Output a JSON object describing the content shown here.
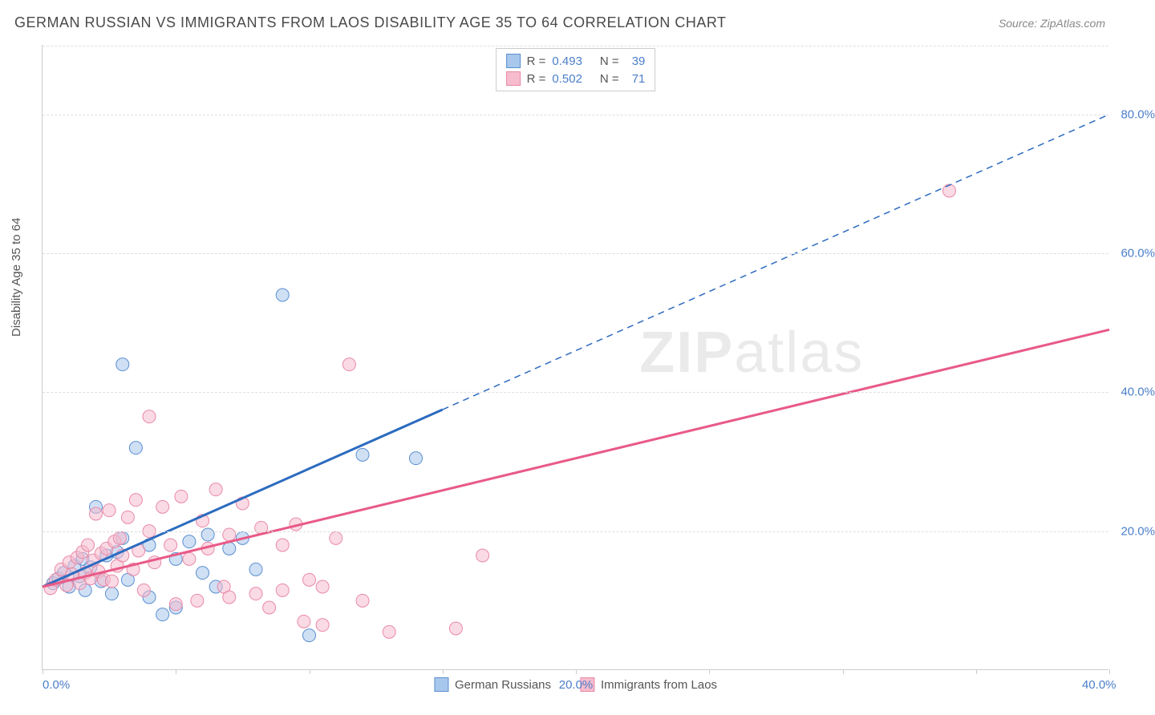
{
  "title": "GERMAN RUSSIAN VS IMMIGRANTS FROM LAOS DISABILITY AGE 35 TO 64 CORRELATION CHART",
  "source_label": "Source: ZipAtlas.com",
  "ylabel": "Disability Age 35 to 64",
  "watermark": "ZIPatlas",
  "chart": {
    "type": "scatter",
    "background_color": "#ffffff",
    "grid_color": "#dddddd",
    "axis_color": "#cccccc",
    "label_fontsize": 15,
    "tick_color": "#4a7ec9",
    "xlim": [
      0,
      40
    ],
    "ylim": [
      0,
      90
    ],
    "ytick_values": [
      20,
      40,
      60,
      80
    ],
    "ytick_labels": [
      "20.0%",
      "40.0%",
      "60.0%",
      "80.0%"
    ],
    "xtick_values": [
      0,
      20,
      40
    ],
    "xtick_labels": [
      "0.0%",
      "20.0%",
      "40.0%"
    ],
    "xtick_minor": [
      5,
      10,
      15,
      25,
      30,
      35
    ],
    "marker_radius": 8,
    "marker_opacity": 0.55,
    "series": [
      {
        "name": "German Russians",
        "fill_color": "#a8c7ec",
        "stroke_color": "#5b8fd0",
        "line_color": "#2c6bbf",
        "line_width": 3,
        "dash_after_x": 15,
        "R": "0.493",
        "N": "39",
        "trend": {
          "x1": 0,
          "y1": 12,
          "x2": 40,
          "y2": 80
        },
        "points": [
          [
            0.4,
            12.5
          ],
          [
            0.6,
            13.2
          ],
          [
            0.8,
            14.0
          ],
          [
            1.0,
            12.0
          ],
          [
            1.2,
            15.0
          ],
          [
            1.4,
            13.5
          ],
          [
            1.5,
            16.0
          ],
          [
            1.6,
            11.5
          ],
          [
            1.8,
            14.8
          ],
          [
            2.0,
            23.5
          ],
          [
            2.2,
            12.8
          ],
          [
            2.4,
            16.5
          ],
          [
            2.6,
            11.0
          ],
          [
            2.8,
            17.0
          ],
          [
            3.0,
            19.0
          ],
          [
            3.0,
            44.0
          ],
          [
            3.2,
            13.0
          ],
          [
            3.5,
            32.0
          ],
          [
            4.0,
            10.5
          ],
          [
            4.0,
            18.0
          ],
          [
            4.5,
            8.0
          ],
          [
            5.0,
            16.0
          ],
          [
            5.0,
            9.0
          ],
          [
            5.5,
            18.5
          ],
          [
            6.0,
            14.0
          ],
          [
            6.2,
            19.5
          ],
          [
            6.5,
            12.0
          ],
          [
            7.0,
            17.5
          ],
          [
            7.5,
            19.0
          ],
          [
            8.0,
            14.5
          ],
          [
            9.0,
            54.0
          ],
          [
            10.0,
            5.0
          ],
          [
            12.0,
            31.0
          ],
          [
            14.0,
            30.5
          ]
        ]
      },
      {
        "name": "Immigrants from Laos",
        "fill_color": "#f6bccd",
        "stroke_color": "#e88aa8",
        "line_color": "#e85a87",
        "line_width": 3,
        "dash_after_x": 40,
        "R": "0.502",
        "N": "71",
        "trend": {
          "x1": 0,
          "y1": 12,
          "x2": 40,
          "y2": 49
        },
        "points": [
          [
            0.3,
            11.8
          ],
          [
            0.5,
            13.0
          ],
          [
            0.7,
            14.5
          ],
          [
            0.9,
            12.2
          ],
          [
            1.0,
            15.5
          ],
          [
            1.1,
            13.8
          ],
          [
            1.3,
            16.2
          ],
          [
            1.4,
            12.5
          ],
          [
            1.5,
            17.0
          ],
          [
            1.6,
            14.0
          ],
          [
            1.7,
            18.0
          ],
          [
            1.8,
            13.2
          ],
          [
            1.9,
            15.8
          ],
          [
            2.0,
            22.5
          ],
          [
            2.1,
            14.2
          ],
          [
            2.2,
            16.8
          ],
          [
            2.3,
            13.0
          ],
          [
            2.4,
            17.5
          ],
          [
            2.5,
            23.0
          ],
          [
            2.6,
            12.8
          ],
          [
            2.7,
            18.5
          ],
          [
            2.8,
            15.0
          ],
          [
            2.9,
            19.0
          ],
          [
            3.0,
            16.5
          ],
          [
            3.2,
            22.0
          ],
          [
            3.4,
            14.5
          ],
          [
            3.5,
            24.5
          ],
          [
            3.6,
            17.2
          ],
          [
            3.8,
            11.5
          ],
          [
            4.0,
            36.5
          ],
          [
            4.0,
            20.0
          ],
          [
            4.2,
            15.5
          ],
          [
            4.5,
            23.5
          ],
          [
            4.8,
            18.0
          ],
          [
            5.0,
            9.5
          ],
          [
            5.2,
            25.0
          ],
          [
            5.5,
            16.0
          ],
          [
            5.8,
            10.0
          ],
          [
            6.0,
            21.5
          ],
          [
            6.2,
            17.5
          ],
          [
            6.5,
            26.0
          ],
          [
            6.8,
            12.0
          ],
          [
            7.0,
            19.5
          ],
          [
            7.0,
            10.5
          ],
          [
            7.5,
            24.0
          ],
          [
            8.0,
            11.0
          ],
          [
            8.2,
            20.5
          ],
          [
            8.5,
            9.0
          ],
          [
            9.0,
            18.0
          ],
          [
            9.0,
            11.5
          ],
          [
            9.5,
            21.0
          ],
          [
            9.8,
            7.0
          ],
          [
            10.0,
            13.0
          ],
          [
            10.5,
            12.0
          ],
          [
            10.5,
            6.5
          ],
          [
            11.0,
            19.0
          ],
          [
            11.5,
            44.0
          ],
          [
            12.0,
            10.0
          ],
          [
            13.0,
            5.5
          ],
          [
            15.5,
            6.0
          ],
          [
            16.5,
            16.5
          ],
          [
            34.0,
            69.0
          ]
        ]
      }
    ],
    "legend_bottom": [
      {
        "label": "German Russians",
        "fill": "#a8c7ec",
        "stroke": "#5b8fd0"
      },
      {
        "label": "Immigrants from Laos",
        "fill": "#f6bccd",
        "stroke": "#e88aa8"
      }
    ]
  }
}
